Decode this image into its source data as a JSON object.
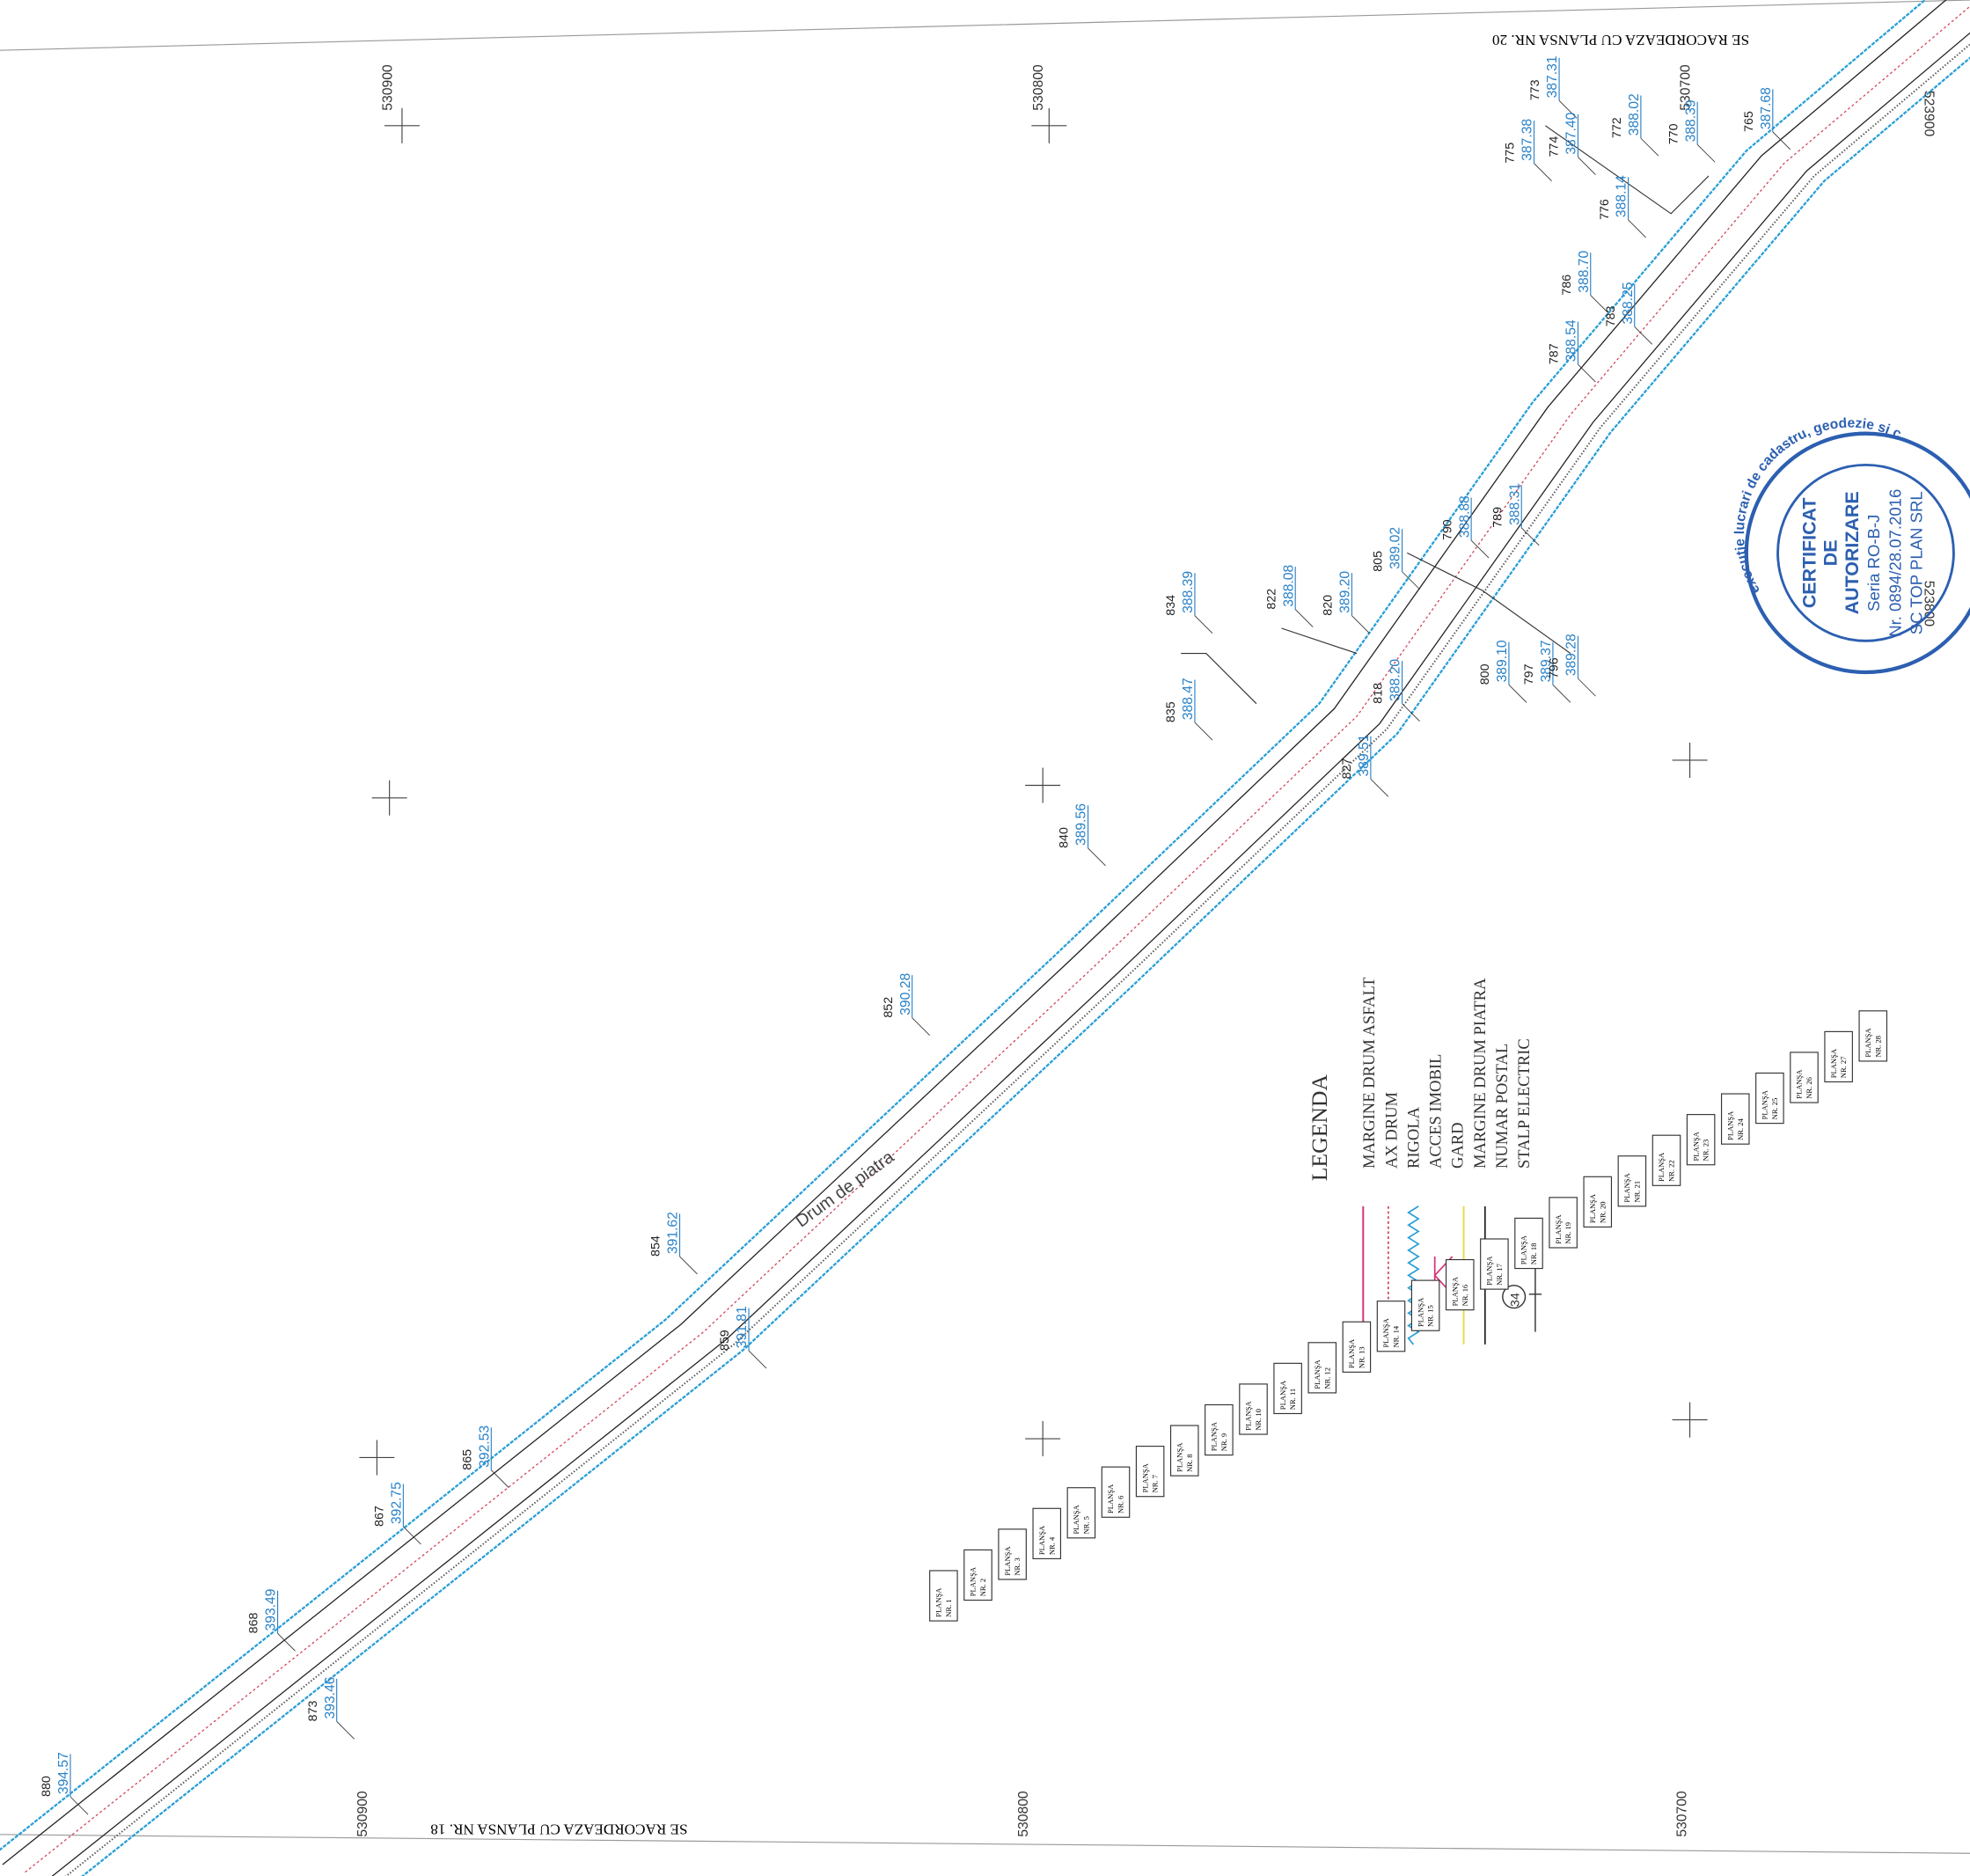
{
  "header": {
    "top_note": "SE RACORDEAZA CU PLANSA NR. 20",
    "bottom_note": "SE RACORDEAZA CU PLANSA NR. 18"
  },
  "coordinates": {
    "top": [
      "530900",
      "530800",
      "530700"
    ],
    "bottom": [
      "530900",
      "530800",
      "530700"
    ],
    "right": [
      "523900",
      "523800"
    ]
  },
  "road_label": "Drum de piatra",
  "legend": {
    "title": "LEGENDA",
    "items": [
      "MARGINE DRUM ASFALT",
      "AX DRUM",
      "RIGOLA",
      "ACCES IMOBIL",
      "GARD",
      "MARGINE DRUM PIATRA",
      "NUMAR POSTAL",
      "STALP ELECTRIC"
    ],
    "symbol_number": "34"
  },
  "stamp": {
    "ring": "executie lucrari de cadastru, geodezie si c",
    "lines": [
      "CERTIFICAT",
      "DE",
      "AUTORIZARE",
      "Seria RO-B-J",
      "Nr. 0894/28.07.2016",
      "SC TOP PLAN SRL"
    ]
  },
  "sheets": [
    {
      "title": "PLANŞA",
      "number": "NR. 1"
    },
    {
      "title": "PLANŞA",
      "number": "NR. 2"
    },
    {
      "title": "PLANŞA",
      "number": "NR. 3"
    },
    {
      "title": "PLANŞA",
      "number": "NR. 4"
    },
    {
      "title": "PLANŞA",
      "number": "NR. 5"
    },
    {
      "title": "PLANŞA",
      "number": "NR. 6"
    },
    {
      "title": "PLANŞA",
      "number": "NR. 7"
    },
    {
      "title": "PLANŞA",
      "number": "NR. 8"
    },
    {
      "title": "PLANŞA",
      "number": "NR. 9"
    },
    {
      "title": "PLANŞA",
      "number": "NR. 10"
    },
    {
      "title": "PLANŞA",
      "number": "NR. 11"
    },
    {
      "title": "PLANŞA",
      "number": "NR. 12"
    },
    {
      "title": "PLANŞA",
      "number": "NR. 13"
    },
    {
      "title": "PLANŞA",
      "number": "NR. 14"
    },
    {
      "title": "PLANŞA",
      "number": "NR. 15"
    },
    {
      "title": "PLANŞA",
      "number": "NR. 16"
    },
    {
      "title": "PLANŞA",
      "number": "NR. 17"
    },
    {
      "title": "PLANŞA",
      "number": "NR. 18"
    },
    {
      "title": "PLANŞA",
      "number": "NR. 19"
    },
    {
      "title": "PLANŞA",
      "number": "NR. 20"
    },
    {
      "title": "PLANŞA",
      "number": "NR. 21"
    },
    {
      "title": "PLANŞA",
      "number": "NR. 22"
    },
    {
      "title": "PLANŞA",
      "number": "NR. 23"
    },
    {
      "title": "PLANŞA",
      "number": "NR. 24"
    },
    {
      "title": "PLANŞA",
      "number": "NR. 25"
    },
    {
      "title": "PLANŞA",
      "number": "NR. 26"
    },
    {
      "title": "PLANŞA",
      "number": "NR. 27"
    },
    {
      "title": "PLANŞA",
      "number": "NR. 28"
    }
  ],
  "points": [
    {
      "id": "773",
      "elevation": "387.31"
    },
    {
      "id": "775",
      "elevation": "387.38"
    },
    {
      "id": "774",
      "elevation": "387.40"
    },
    {
      "id": "772",
      "elevation": "388.02"
    },
    {
      "id": "770",
      "elevation": "388.39"
    },
    {
      "id": "765",
      "elevation": "387.68"
    },
    {
      "id": "776",
      "elevation": "388.14"
    },
    {
      "id": "786",
      "elevation": "388.70"
    },
    {
      "id": "787",
      "elevation": "388.54"
    },
    {
      "id": "783",
      "elevation": "388.25"
    },
    {
      "id": "790",
      "elevation": "388.88"
    },
    {
      "id": "789",
      "elevation": "388.31"
    },
    {
      "id": "805",
      "elevation": "389.02"
    },
    {
      "id": "820",
      "elevation": "389.20"
    },
    {
      "id": "822",
      "elevation": "388.08"
    },
    {
      "id": "834",
      "elevation": "388.39"
    },
    {
      "id": "835",
      "elevation": "388.47"
    },
    {
      "id": "818",
      "elevation": "388.20"
    },
    {
      "id": "800",
      "elevation": "389.10"
    },
    {
      "id": "797",
      "elevation": "389.37"
    },
    {
      "id": "796",
      "elevation": "389.28"
    },
    {
      "id": "827",
      "elevation": "389.51"
    },
    {
      "id": "840",
      "elevation": "389.56"
    },
    {
      "id": "852",
      "elevation": "390.28"
    },
    {
      "id": "854",
      "elevation": "391.62"
    },
    {
      "id": "859",
      "elevation": "391.81"
    },
    {
      "id": "865",
      "elevation": "392.53"
    },
    {
      "id": "867",
      "elevation": "392.75"
    },
    {
      "id": "868",
      "elevation": "393.49"
    },
    {
      "id": "873",
      "elevation": "393.46"
    },
    {
      "id": "880",
      "elevation": "394.57"
    }
  ]
}
